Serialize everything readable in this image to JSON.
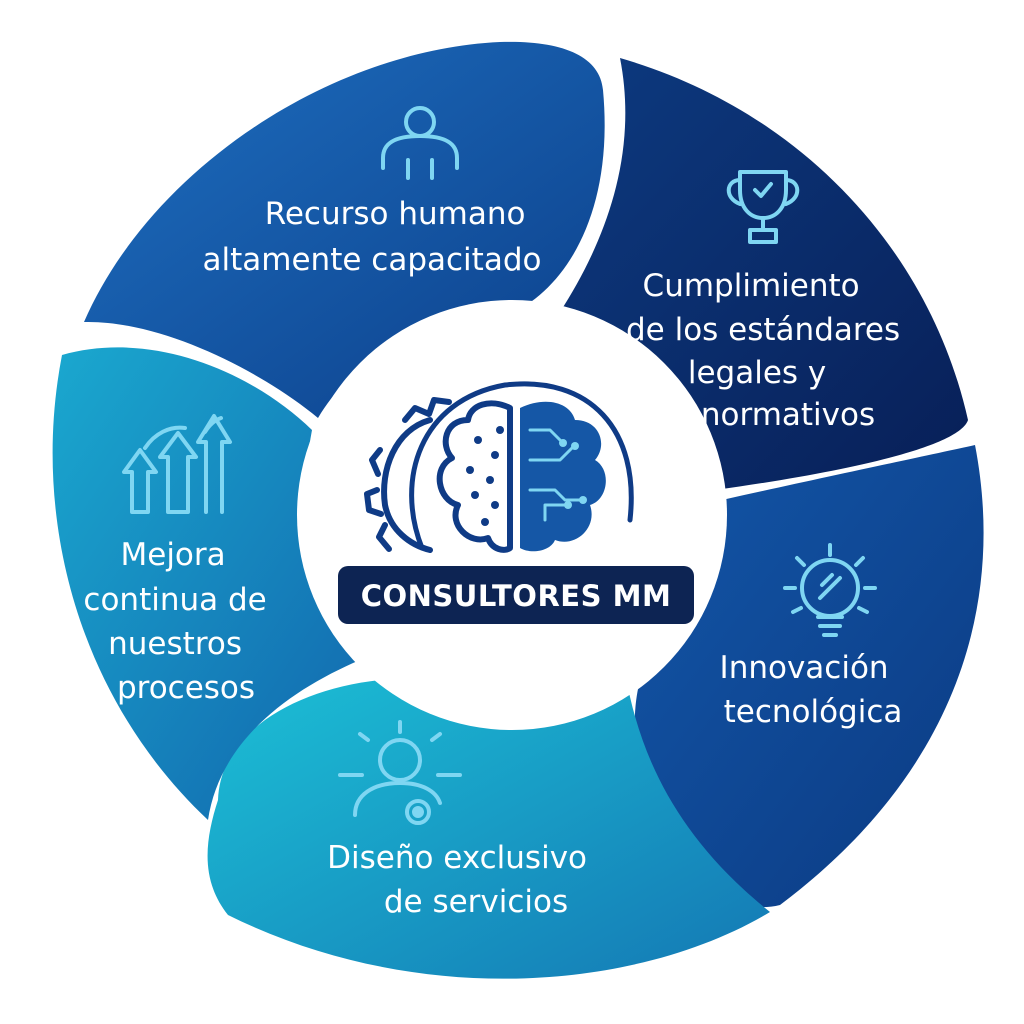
{
  "center": {
    "badge_text": "CONSULTORES MM",
    "icon": "brain-gear-circuit-icon"
  },
  "colors": {
    "segment_top": "#1257a6",
    "segment_right_top": "#0a2f6f",
    "segment_right_bottom": "#0e4c98",
    "segment_bottom": "#14a3c4",
    "segment_left": "#1385b8",
    "icon_light": "#7fd6f2",
    "center_badge": "#0d2453",
    "center_icon": "#0f3b86"
  },
  "segments": [
    {
      "id": "recurso",
      "icon": "person-icon",
      "lines": [
        "Recurso humano",
        "altamente capacitado"
      ]
    },
    {
      "id": "cumplimiento",
      "icon": "trophy-icon",
      "lines": [
        "Cumplimiento",
        "de los estándares",
        "legales y",
        "normativos"
      ]
    },
    {
      "id": "innovacion",
      "icon": "lightbulb-icon",
      "lines": [
        "Innovación",
        "tecnológica"
      ]
    },
    {
      "id": "diseno",
      "icon": "person-gear-icon",
      "lines": [
        "Diseño exclusivo",
        "de servicios"
      ]
    },
    {
      "id": "mejora",
      "icon": "growth-arrows-icon",
      "lines": [
        "Mejora",
        "continua de",
        "nuestros",
        "procesos"
      ]
    }
  ]
}
